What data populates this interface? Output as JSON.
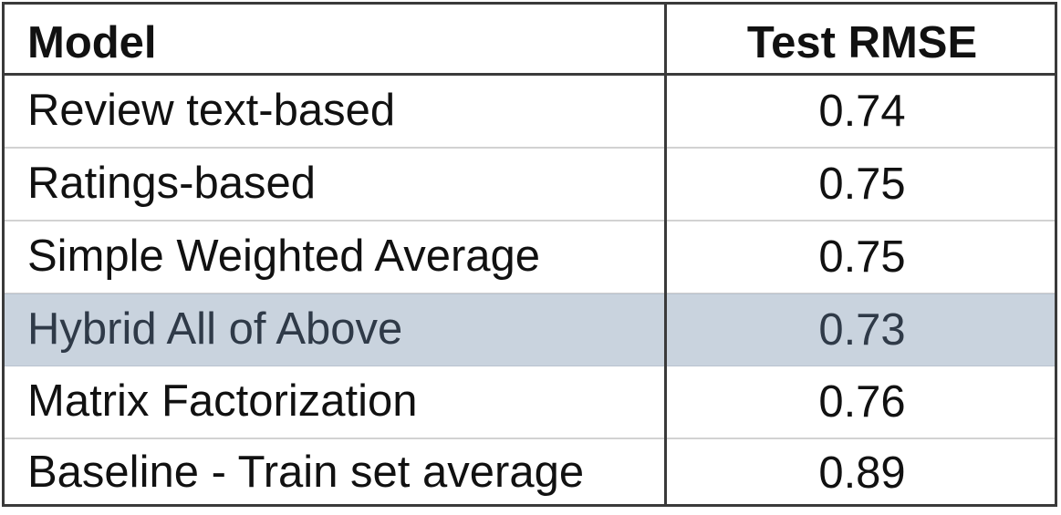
{
  "chart_data": {
    "type": "table",
    "columns": [
      "Model",
      "Test RMSE"
    ],
    "rows": [
      {
        "model": "Review text-based",
        "value": "0.74"
      },
      {
        "model": "Ratings-based",
        "value": "0.75"
      },
      {
        "model": "Simple Weighted Average",
        "value": "0.75"
      },
      {
        "model": "Hybrid All of Above",
        "value": "0.73",
        "highlighted": true
      },
      {
        "model": "Matrix Factorization",
        "value": "0.76"
      },
      {
        "model": "Baseline - Train set average",
        "value": "0.89"
      }
    ],
    "highlight_color": "#c9d3de"
  }
}
